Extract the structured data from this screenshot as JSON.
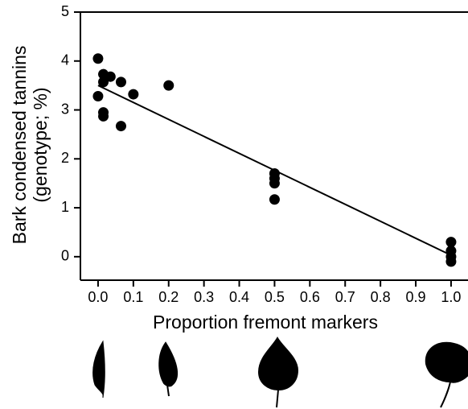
{
  "chart_data": {
    "type": "scatter",
    "xlabel": "Proportion fremont markers",
    "ylabel": [
      "Bark condensed tannins",
      "(genotype; %)"
    ],
    "x": [
      0.0,
      0.0,
      0.015,
      0.015,
      0.015,
      0.015,
      0.035,
      0.065,
      0.065,
      0.1,
      0.2,
      0.5,
      0.5,
      0.5,
      0.5,
      1.0,
      1.0,
      1.0,
      1.0
    ],
    "values": [
      4.05,
      3.28,
      3.73,
      3.57,
      2.95,
      2.87,
      3.68,
      3.57,
      2.67,
      3.32,
      3.5,
      1.7,
      1.6,
      1.5,
      1.17,
      0.3,
      0.12,
      0.0,
      -0.1
    ],
    "color": "#000000",
    "fit": {
      "x": [
        0,
        1
      ],
      "y": [
        3.5,
        0.03
      ]
    },
    "xlim": [
      -0.05,
      1.048
    ],
    "ylim": [
      -0.48,
      5
    ],
    "xticks": [
      {
        "value": 0,
        "label": "0.0"
      },
      0.1,
      0.2,
      0.3,
      0.4,
      0.5,
      0.6,
      0.7,
      0.8,
      0.9,
      {
        "value": 1,
        "label": "1.0"
      }
    ],
    "yticks": [
      0,
      1,
      2,
      3,
      4,
      5
    ]
  }
}
